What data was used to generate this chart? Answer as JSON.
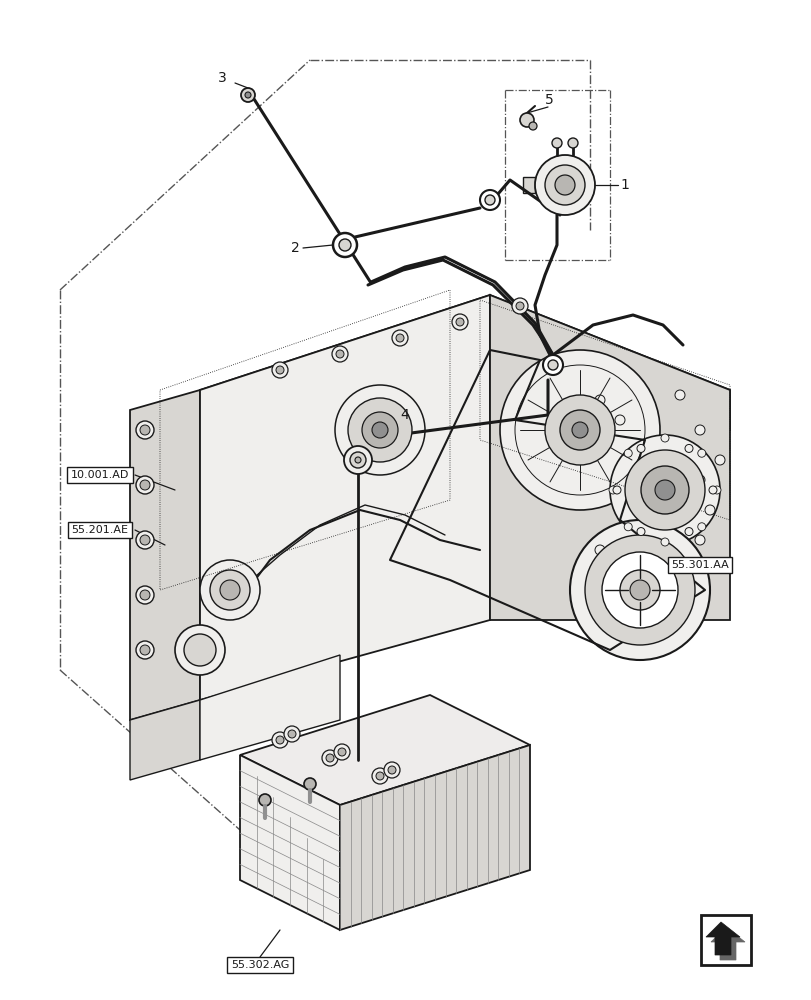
{
  "background_color": "#ffffff",
  "figure_width": 8.12,
  "figure_height": 10.0,
  "dpi": 100,
  "labels": {
    "label_10001AD": "10.001.AD",
    "label_55201AE": "55.201.AE",
    "label_55301AA": "55.301.AA",
    "label_55302AG": "55.302.AG"
  },
  "line_color": "#1a1a1a",
  "gray1": "#f0efed",
  "gray2": "#d8d6d2",
  "gray3": "#b8b6b2",
  "gray4": "#909090",
  "dash_color": "#555555"
}
